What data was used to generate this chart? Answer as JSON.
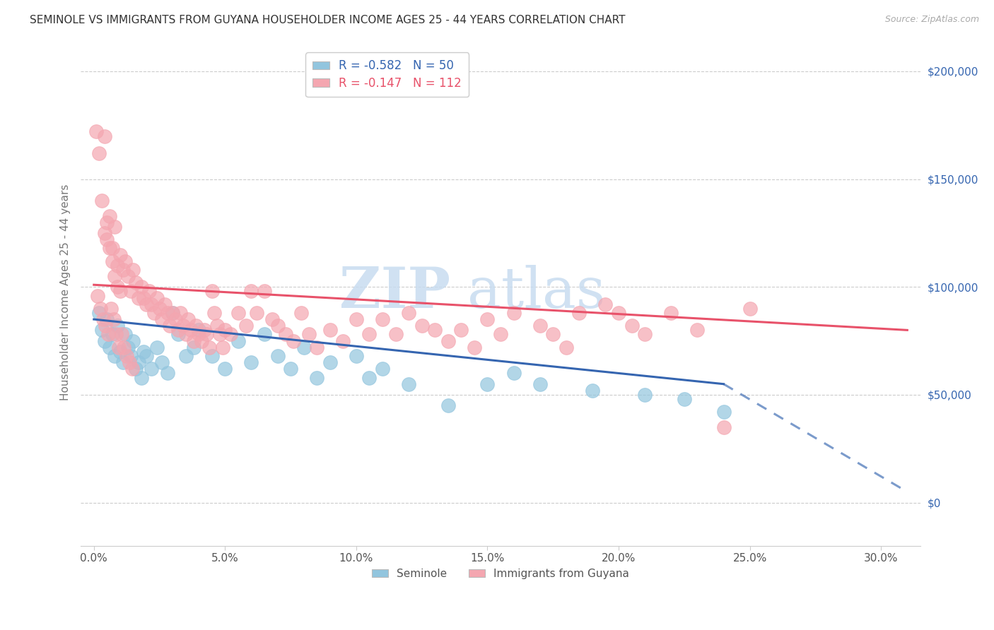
{
  "title": "SEMINOLE VS IMMIGRANTS FROM GUYANA HOUSEHOLDER INCOME AGES 25 - 44 YEARS CORRELATION CHART",
  "source": "Source: ZipAtlas.com",
  "ylabel": "Householder Income Ages 25 - 44 years",
  "xlabel_ticks": [
    "0.0%",
    "5.0%",
    "10.0%",
    "15.0%",
    "20.0%",
    "25.0%",
    "30.0%"
  ],
  "xlabel_vals": [
    0.0,
    5.0,
    10.0,
    15.0,
    20.0,
    25.0,
    30.0
  ],
  "ytick_labels": [
    "$0",
    "$50,000",
    "$100,000",
    "$150,000",
    "$200,000"
  ],
  "ytick_vals": [
    0,
    50000,
    100000,
    150000,
    200000
  ],
  "xlim": [
    -0.5,
    31.5
  ],
  "ylim": [
    -20000,
    215000
  ],
  "seminole_R": -0.582,
  "seminole_N": 50,
  "guyana_R": -0.147,
  "guyana_N": 112,
  "seminole_color": "#92C5DE",
  "guyana_color": "#F4A6B0",
  "seminole_line_color": "#3565B0",
  "guyana_line_color": "#E8526A",
  "watermark_zip": "ZIP",
  "watermark_atlas": "atlas",
  "seminole_line_x0": 0.0,
  "seminole_line_y0": 85000,
  "seminole_line_x1": 24.0,
  "seminole_line_y1": 55000,
  "seminole_dash_x0": 24.0,
  "seminole_dash_y0": 55000,
  "seminole_dash_x1": 31.0,
  "seminole_dash_y1": 5000,
  "guyana_line_x0": 0.0,
  "guyana_line_y0": 101000,
  "guyana_line_x1": 31.0,
  "guyana_line_y1": 80000,
  "seminole_scatter": [
    [
      0.2,
      88000
    ],
    [
      0.3,
      80000
    ],
    [
      0.4,
      75000
    ],
    [
      0.5,
      85000
    ],
    [
      0.6,
      72000
    ],
    [
      0.7,
      78000
    ],
    [
      0.8,
      68000
    ],
    [
      0.9,
      82000
    ],
    [
      1.0,
      70000
    ],
    [
      1.1,
      65000
    ],
    [
      1.2,
      78000
    ],
    [
      1.3,
      72000
    ],
    [
      1.4,
      68000
    ],
    [
      1.5,
      75000
    ],
    [
      1.6,
      62000
    ],
    [
      1.7,
      65000
    ],
    [
      1.8,
      58000
    ],
    [
      1.9,
      70000
    ],
    [
      2.0,
      68000
    ],
    [
      2.2,
      62000
    ],
    [
      2.4,
      72000
    ],
    [
      2.6,
      65000
    ],
    [
      2.8,
      60000
    ],
    [
      3.0,
      88000
    ],
    [
      3.2,
      78000
    ],
    [
      3.5,
      68000
    ],
    [
      3.8,
      72000
    ],
    [
      4.0,
      80000
    ],
    [
      4.5,
      68000
    ],
    [
      5.0,
      62000
    ],
    [
      5.5,
      75000
    ],
    [
      6.0,
      65000
    ],
    [
      6.5,
      78000
    ],
    [
      7.0,
      68000
    ],
    [
      7.5,
      62000
    ],
    [
      8.0,
      72000
    ],
    [
      8.5,
      58000
    ],
    [
      9.0,
      65000
    ],
    [
      10.0,
      68000
    ],
    [
      10.5,
      58000
    ],
    [
      11.0,
      62000
    ],
    [
      12.0,
      55000
    ],
    [
      13.5,
      45000
    ],
    [
      15.0,
      55000
    ],
    [
      16.0,
      60000
    ],
    [
      17.0,
      55000
    ],
    [
      19.0,
      52000
    ],
    [
      21.0,
      50000
    ],
    [
      22.5,
      48000
    ],
    [
      24.0,
      42000
    ]
  ],
  "guyana_scatter": [
    [
      0.1,
      172000
    ],
    [
      0.2,
      162000
    ],
    [
      0.4,
      170000
    ],
    [
      0.3,
      140000
    ],
    [
      0.6,
      133000
    ],
    [
      0.8,
      128000
    ],
    [
      0.4,
      125000
    ],
    [
      0.5,
      122000
    ],
    [
      0.7,
      118000
    ],
    [
      0.9,
      110000
    ],
    [
      1.0,
      115000
    ],
    [
      1.1,
      108000
    ],
    [
      0.5,
      130000
    ],
    [
      0.6,
      118000
    ],
    [
      0.7,
      112000
    ],
    [
      0.8,
      105000
    ],
    [
      0.9,
      100000
    ],
    [
      1.0,
      98000
    ],
    [
      1.2,
      112000
    ],
    [
      1.3,
      105000
    ],
    [
      1.4,
      98000
    ],
    [
      1.5,
      108000
    ],
    [
      1.6,
      102000
    ],
    [
      1.7,
      95000
    ],
    [
      1.8,
      100000
    ],
    [
      1.9,
      95000
    ],
    [
      2.0,
      92000
    ],
    [
      2.1,
      98000
    ],
    [
      2.2,
      92000
    ],
    [
      2.3,
      88000
    ],
    [
      2.4,
      95000
    ],
    [
      2.5,
      90000
    ],
    [
      2.6,
      85000
    ],
    [
      2.7,
      92000
    ],
    [
      2.8,
      88000
    ],
    [
      2.9,
      82000
    ],
    [
      3.0,
      88000
    ],
    [
      3.1,
      85000
    ],
    [
      3.2,
      80000
    ],
    [
      3.3,
      88000
    ],
    [
      3.4,
      82000
    ],
    [
      3.5,
      78000
    ],
    [
      3.6,
      85000
    ],
    [
      3.7,
      80000
    ],
    [
      3.8,
      75000
    ],
    [
      3.9,
      82000
    ],
    [
      4.0,
      78000
    ],
    [
      4.1,
      75000
    ],
    [
      4.2,
      80000
    ],
    [
      4.3,
      78000
    ],
    [
      4.4,
      72000
    ],
    [
      4.5,
      98000
    ],
    [
      4.6,
      88000
    ],
    [
      4.7,
      82000
    ],
    [
      4.8,
      78000
    ],
    [
      4.9,
      72000
    ],
    [
      5.0,
      80000
    ],
    [
      5.2,
      78000
    ],
    [
      5.5,
      88000
    ],
    [
      5.8,
      82000
    ],
    [
      6.0,
      98000
    ],
    [
      6.2,
      88000
    ],
    [
      6.5,
      98000
    ],
    [
      6.8,
      85000
    ],
    [
      7.0,
      82000
    ],
    [
      7.3,
      78000
    ],
    [
      7.6,
      75000
    ],
    [
      7.9,
      88000
    ],
    [
      8.2,
      78000
    ],
    [
      8.5,
      72000
    ],
    [
      9.0,
      80000
    ],
    [
      9.5,
      75000
    ],
    [
      10.0,
      85000
    ],
    [
      10.5,
      78000
    ],
    [
      11.0,
      85000
    ],
    [
      11.5,
      78000
    ],
    [
      12.0,
      88000
    ],
    [
      12.5,
      82000
    ],
    [
      13.0,
      80000
    ],
    [
      13.5,
      75000
    ],
    [
      14.0,
      80000
    ],
    [
      14.5,
      72000
    ],
    [
      15.0,
      85000
    ],
    [
      15.5,
      78000
    ],
    [
      16.0,
      88000
    ],
    [
      17.0,
      82000
    ],
    [
      17.5,
      78000
    ],
    [
      18.0,
      72000
    ],
    [
      18.5,
      88000
    ],
    [
      19.5,
      92000
    ],
    [
      20.0,
      88000
    ],
    [
      20.5,
      82000
    ],
    [
      21.0,
      78000
    ],
    [
      22.0,
      88000
    ],
    [
      23.0,
      80000
    ],
    [
      24.0,
      35000
    ],
    [
      25.0,
      90000
    ],
    [
      0.15,
      96000
    ],
    [
      0.25,
      90000
    ],
    [
      0.35,
      85000
    ],
    [
      0.45,
      82000
    ],
    [
      0.55,
      78000
    ],
    [
      0.65,
      90000
    ],
    [
      0.75,
      85000
    ],
    [
      0.85,
      78000
    ],
    [
      0.95,
      72000
    ],
    [
      1.05,
      78000
    ],
    [
      1.15,
      72000
    ],
    [
      1.25,
      68000
    ],
    [
      1.35,
      65000
    ],
    [
      1.45,
      62000
    ]
  ]
}
